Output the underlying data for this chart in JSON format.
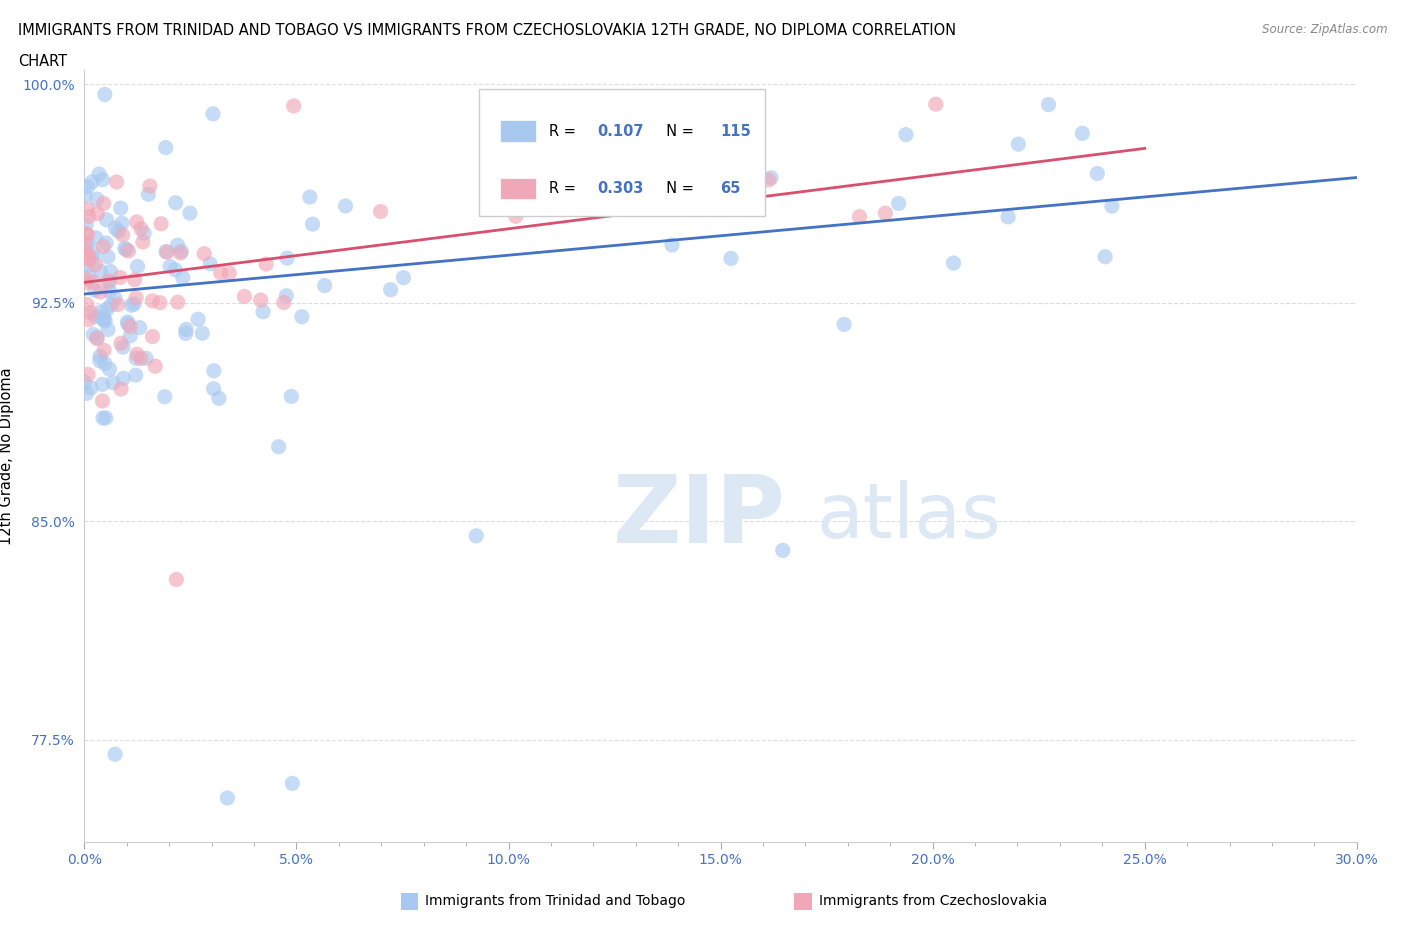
{
  "title_line1": "IMMIGRANTS FROM TRINIDAD AND TOBAGO VS IMMIGRANTS FROM CZECHOSLOVAKIA 12TH GRADE, NO DIPLOMA CORRELATION",
  "title_line2": "CHART",
  "source_text": "Source: ZipAtlas.com",
  "ylabel": "12th Grade, No Diploma",
  "xlim": [
    0.0,
    0.3
  ],
  "ylim": [
    0.74,
    1.005
  ],
  "xtick_labels": [
    "0.0%",
    "",
    "",
    "",
    "",
    "",
    "",
    "",
    "",
    "",
    "5.0%",
    "",
    "",
    "",
    "",
    "",
    "",
    "",
    "",
    "",
    "10.0%",
    "",
    "",
    "",
    "",
    "",
    "",
    "",
    "",
    "",
    "15.0%",
    "",
    "",
    "",
    "",
    "",
    "",
    "",
    "",
    "",
    "20.0%",
    "",
    "",
    "",
    "",
    "",
    "",
    "",
    "",
    "",
    "25.0%",
    "",
    "",
    "",
    "",
    "",
    "",
    "",
    "",
    "",
    "30.0%"
  ],
  "xtick_vals_major": [
    0.0,
    0.05,
    0.1,
    0.15,
    0.2,
    0.25,
    0.3
  ],
  "ytick_labels": [
    "77.5%",
    "85.0%",
    "92.5%",
    "100.0%"
  ],
  "ytick_vals": [
    0.775,
    0.85,
    0.925,
    1.0
  ],
  "series1_color": "#A8C8F0",
  "series2_color": "#F0A8B8",
  "trendline1_color": "#4472C4",
  "trendline2_color": "#D94F6E",
  "legend_label1": "Immigrants from Trinidad and Tobago",
  "legend_label2": "Immigrants from Czechoslovakia",
  "R1": 0.107,
  "N1": 115,
  "R2": 0.303,
  "N2": 65,
  "watermark_zip": "ZIP",
  "watermark_atlas": "atlas",
  "background_color": "#FFFFFF",
  "grid_color": "#DDDDDD",
  "trendline1_y_at_0": 0.928,
  "trendline1_y_at_30": 0.968,
  "trendline2_y_at_0": 0.932,
  "trendline2_y_at_25": 0.978
}
